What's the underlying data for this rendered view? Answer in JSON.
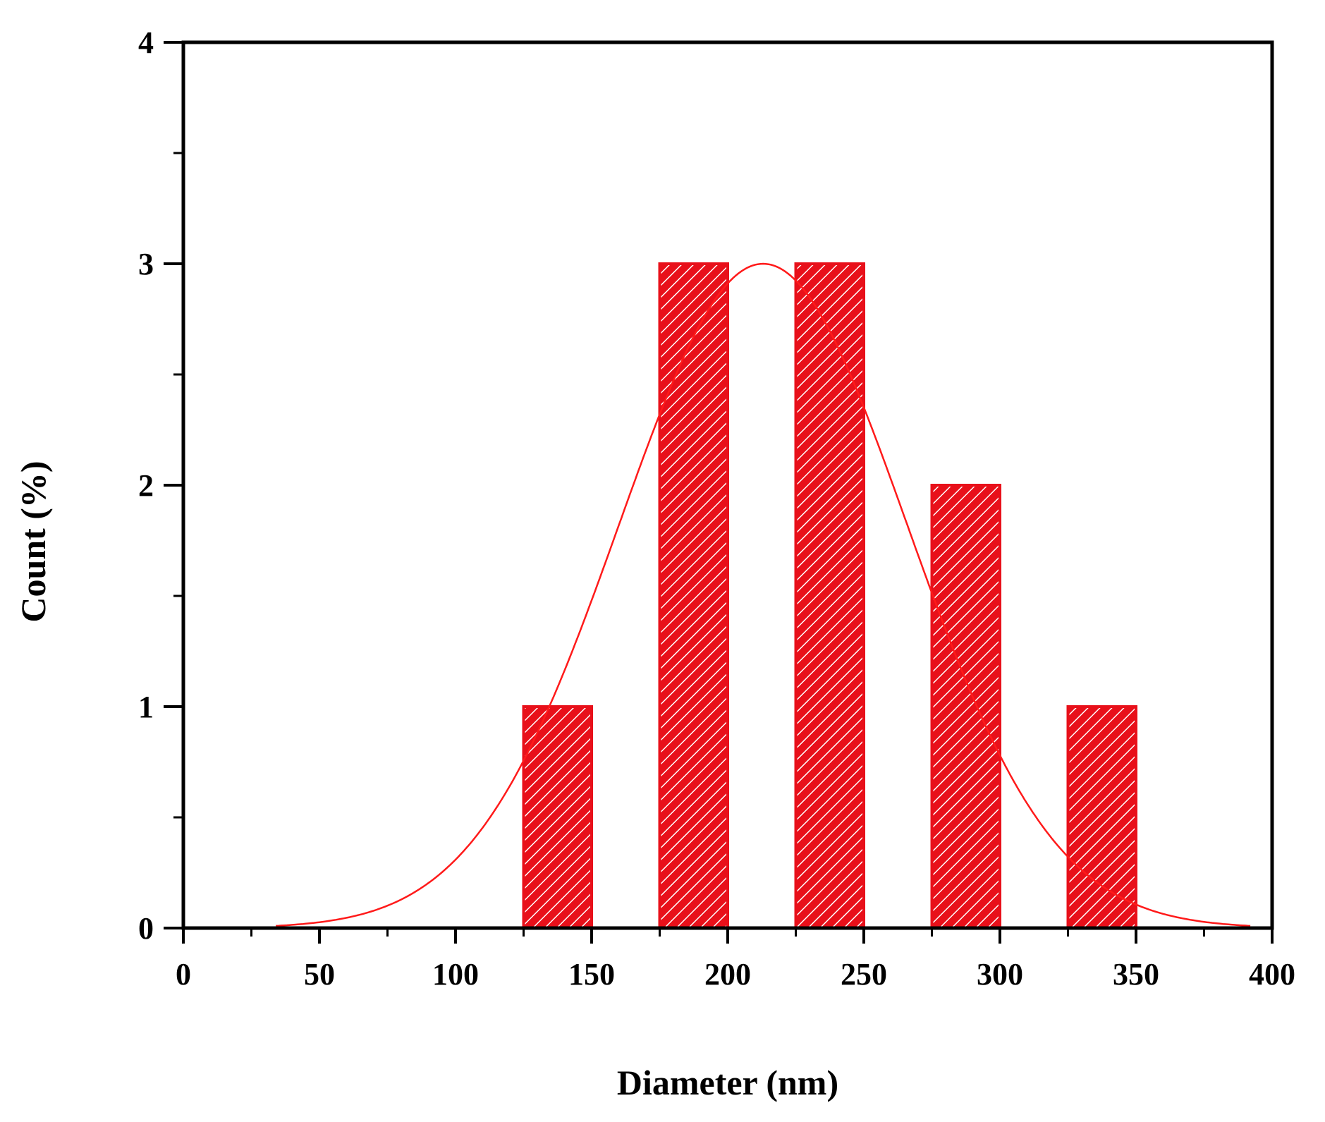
{
  "chart_data": {
    "type": "bar",
    "title": "",
    "xlabel": "Diameter (nm)",
    "ylabel": "Count (%)",
    "xlim": [
      0,
      400
    ],
    "ylim": [
      0,
      4
    ],
    "x_ticks": [
      "0",
      "50",
      "100",
      "150",
      "200",
      "250",
      "300",
      "350",
      "400"
    ],
    "y_ticks": [
      "0",
      "1",
      "2",
      "3",
      "4"
    ],
    "grid": false,
    "legend": "none",
    "bins": [
      {
        "start": 125,
        "end": 150,
        "value": 1
      },
      {
        "start": 175,
        "end": 200,
        "value": 3
      },
      {
        "start": 225,
        "end": 250,
        "value": 3
      },
      {
        "start": 275,
        "end": 300,
        "value": 2
      },
      {
        "start": 325,
        "end": 350,
        "value": 1
      }
    ],
    "fit_curve": {
      "type": "gaussian",
      "center": 213,
      "sigma": 53,
      "amplitude": 3,
      "x_range": [
        34,
        392
      ]
    },
    "colors": {
      "bar_fill": "#e8101a",
      "bar_hatch": "#ffffff",
      "curve": "#ff1a1a",
      "axis": "#000000"
    }
  }
}
